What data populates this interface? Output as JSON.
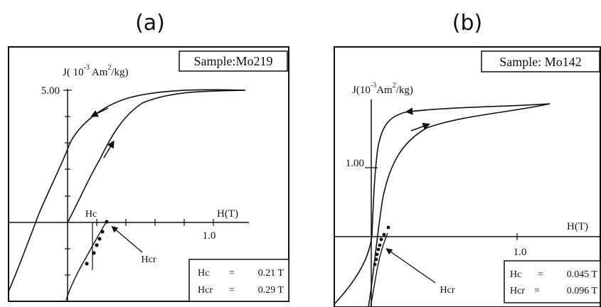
{
  "figure": {
    "panels": [
      {
        "letter": "(a)",
        "sample": "Sample:Mo219",
        "y_label": "J( 10-3 Am2/kg)",
        "x_label": "H(T)",
        "y_tick": "5.00",
        "x_tick": "1.0",
        "hc_label": "Hc",
        "hcr_label": "Hcr",
        "result_hc_name": "Hc",
        "result_hc_value": "0.21 T",
        "result_hcr_name": "Hcr",
        "result_hcr_value": "0.29 T"
      },
      {
        "letter": "(b)",
        "sample": "Sample: Mo142",
        "y_label": "J(10-3Am2/kg)",
        "x_label": "H(T)",
        "y_tick": "1.00",
        "x_tick": "1.0",
        "hcr_label": "Hcr",
        "result_hc_name": "Hc",
        "result_hc_value": "0.045 T",
        "result_hcr_name": "Hcr",
        "result_hcr_value": "0.096 T"
      }
    ]
  },
  "chart_data": [
    {
      "type": "line",
      "title": "Sample:Mo219",
      "xlabel": "H(T)",
      "ylabel": "J( 10-3 Am2/kg)",
      "x_ticks": [
        "1.0"
      ],
      "y_ticks": [
        "5.00"
      ],
      "xlim": [
        -0.74,
        1.14
      ],
      "ylim": [
        -3.12,
        5.84
      ],
      "series": [
        {
          "role": "descending branch",
          "x": [
            1.14,
            0.9,
            0.6,
            0.3,
            0.1,
            0.0,
            -0.1,
            -0.2,
            -0.3,
            -0.5,
            -0.7,
            -0.74
          ],
          "y": [
            5.0,
            4.9,
            4.55,
            3.8,
            2.9,
            2.2,
            1.3,
            0.3,
            -0.8,
            -2.0,
            -2.8,
            -3.12
          ]
        },
        {
          "role": "ascending branch",
          "x": [
            0.0,
            0.1,
            0.2,
            0.3,
            0.45,
            0.6,
            0.8,
            1.0,
            1.14
          ],
          "y": [
            0.0,
            0.75,
            1.6,
            2.5,
            3.4,
            4.1,
            4.6,
            4.9,
            5.0
          ]
        },
        {
          "role": "backfield demagnetization (dotted line)",
          "x": [
            -0.01,
            0.08,
            0.14,
            0.19,
            0.24,
            0.27
          ],
          "y": [
            -3.1,
            -1.6,
            -0.95,
            -0.65,
            -0.35,
            -0.05
          ]
        },
        {
          "role": "backfield points",
          "x": [
            0.12,
            0.17,
            0.19,
            0.21,
            0.24,
            0.27
          ],
          "y": [
            -1.55,
            -1.1,
            -0.85,
            -0.55,
            -0.3,
            0.0
          ]
        }
      ],
      "annotations": [
        "Hc",
        "Hcr"
      ],
      "results": {
        "Hc": "0.21 T",
        "Hcr": "0.29 T"
      }
    },
    {
      "type": "line",
      "title": "Sample: Mo142",
      "xlabel": "H(T)",
      "ylabel": "J(10-3Am2/kg)",
      "x_ticks": [
        "1.0"
      ],
      "y_ticks": [
        "1.00"
      ],
      "xlim": [
        -0.38,
        1.56
      ],
      "ylim": [
        -0.92,
        1.96
      ],
      "series": [
        {
          "role": "descending branch",
          "x": [
            1.2,
            1.0,
            0.7,
            0.4,
            0.2,
            0.1,
            0.05,
            0.02,
            0.0,
            -0.02,
            -0.1,
            -0.2,
            -0.3,
            -0.38
          ],
          "y": [
            1.96,
            1.9,
            1.87,
            1.85,
            1.8,
            1.7,
            1.45,
            1.0,
            0.4,
            0.0,
            -0.4,
            -0.65,
            -0.8,
            -0.92
          ]
        },
        {
          "role": "ascending branch",
          "x": [
            0.0,
            0.03,
            0.08,
            0.15,
            0.25,
            0.4,
            0.6,
            0.8,
            1.0,
            1.2
          ],
          "y": [
            -0.92,
            -0.3,
            0.4,
            0.9,
            1.3,
            1.55,
            1.72,
            1.8,
            1.86,
            1.96
          ]
        },
        {
          "role": "backfield demagnetization (dotted line)",
          "x": [
            -0.02,
            0.05,
            0.08,
            0.11,
            0.14
          ],
          "y": [
            -0.92,
            -0.55,
            -0.3,
            -0.1,
            0.03
          ]
        },
        {
          "role": "backfield points",
          "x": [
            0.03,
            0.04,
            0.055,
            0.07,
            0.08,
            0.09,
            0.11,
            0.14
          ],
          "y": [
            -0.5,
            -0.42,
            -0.34,
            -0.28,
            -0.2,
            -0.1,
            -0.02,
            0.04
          ]
        }
      ],
      "annotations": [
        "Hcr"
      ],
      "results": {
        "Hc": "0.045 T",
        "Hcr": "0.096 T"
      }
    }
  ]
}
